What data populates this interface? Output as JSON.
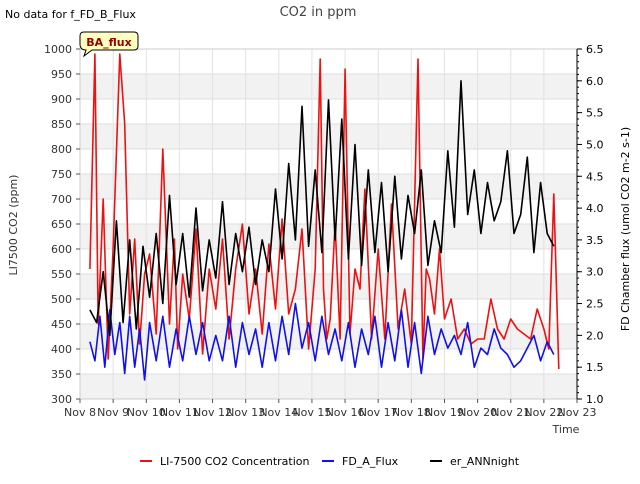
{
  "header": {
    "title": "CO2 in ppm",
    "nodata": "No data for f_FD_B_Flux",
    "badge": "BA_flux"
  },
  "chart_data": {
    "type": "line",
    "title": "CO2 in ppm",
    "xlabel": "Time",
    "ylabel": "LI7500 CO2 (ppm)",
    "y2label": "FD Chamber flux (umol CO2 m-2 s-1)",
    "x_ticks": [
      "Nov 8",
      "Nov 9",
      "Nov 10",
      "Nov 11",
      "Nov 12",
      "Nov 13",
      "Nov 14",
      "Nov 15",
      "Nov 16",
      "Nov 17",
      "Nov 18",
      "Nov 19",
      "Nov 20",
      "Nov 21",
      "Nov 22",
      "Nov 23"
    ],
    "x_range": [
      "Nov 8",
      "Nov 23"
    ],
    "ylim": [
      300,
      1000
    ],
    "y_ticks": [
      300,
      350,
      400,
      450,
      500,
      550,
      600,
      650,
      700,
      750,
      800,
      850,
      900,
      950,
      1000
    ],
    "y2lim": [
      1.0,
      6.5
    ],
    "y2_ticks": [
      1.0,
      1.5,
      2.0,
      2.5,
      3.0,
      3.5,
      4.0,
      4.5,
      5.0,
      5.5,
      6.0,
      6.5
    ],
    "grid": "horizontal alternating bands",
    "legend_position": "bottom",
    "series": [
      {
        "name": "LI-7500 CO2 Concentration",
        "color": "#ee1111",
        "axis": "left",
        "x_day": [
          8.3,
          8.45,
          8.55,
          8.7,
          8.85,
          9.0,
          9.2,
          9.35,
          9.5,
          9.65,
          9.8,
          9.95,
          10.1,
          10.3,
          10.5,
          10.7,
          10.85,
          10.95,
          11.1,
          11.3,
          11.5,
          11.7,
          11.9,
          12.1,
          12.3,
          12.5,
          12.7,
          12.9,
          13.1,
          13.3,
          13.5,
          13.7,
          13.9,
          14.1,
          14.3,
          14.5,
          14.7,
          14.9,
          15.1,
          15.25,
          15.35,
          15.45,
          15.55,
          15.7,
          15.85,
          16.0,
          16.15,
          16.3,
          16.45,
          16.6,
          16.8,
          17.0,
          17.2,
          17.4,
          17.6,
          17.8,
          18.0,
          18.2,
          18.35,
          18.45,
          18.55,
          18.7,
          18.85,
          19.0,
          19.2,
          19.4,
          19.6,
          19.8,
          20.0,
          20.2,
          20.4,
          20.6,
          20.8,
          21.0,
          21.2,
          21.4,
          21.6,
          21.8,
          22.0,
          22.15,
          22.3,
          22.45
        ],
        "values": [
          560,
          990,
          450,
          700,
          380,
          600,
          990,
          850,
          470,
          620,
          410,
          550,
          590,
          430,
          800,
          450,
          620,
          400,
          550,
          460,
          640,
          390,
          560,
          480,
          620,
          420,
          560,
          650,
          470,
          560,
          430,
          610,
          480,
          660,
          470,
          520,
          640,
          400,
          560,
          980,
          520,
          420,
          460,
          650,
          420,
          960,
          430,
          560,
          520,
          720,
          420,
          600,
          420,
          690,
          440,
          520,
          410,
          980,
          380,
          560,
          540,
          470,
          600,
          460,
          500,
          420,
          440,
          410,
          420,
          420,
          500,
          440,
          420,
          460,
          440,
          430,
          420,
          480,
          440,
          400,
          710,
          360
        ]
      },
      {
        "name": "FD_A_Flux",
        "color": "#1111ee",
        "axis": "right",
        "x_day": [
          8.3,
          8.45,
          8.6,
          8.75,
          8.9,
          9.05,
          9.2,
          9.35,
          9.5,
          9.65,
          9.8,
          9.95,
          10.1,
          10.3,
          10.5,
          10.7,
          10.9,
          11.1,
          11.3,
          11.5,
          11.7,
          11.9,
          12.1,
          12.3,
          12.5,
          12.7,
          12.9,
          13.1,
          13.3,
          13.5,
          13.7,
          13.9,
          14.1,
          14.3,
          14.5,
          14.7,
          14.9,
          15.1,
          15.3,
          15.5,
          15.7,
          15.9,
          16.1,
          16.3,
          16.5,
          16.7,
          16.9,
          17.1,
          17.3,
          17.5,
          17.7,
          17.9,
          18.1,
          18.3,
          18.5,
          18.7,
          18.9,
          19.1,
          19.3,
          19.5,
          19.7,
          19.9,
          20.1,
          20.3,
          20.5,
          20.7,
          20.9,
          21.1,
          21.3,
          21.5,
          21.7,
          21.9,
          22.1,
          22.3
        ],
        "values": [
          1.9,
          1.6,
          2.3,
          1.5,
          2.4,
          1.7,
          2.2,
          1.4,
          2.3,
          1.5,
          2.1,
          1.3,
          2.2,
          1.6,
          2.3,
          1.5,
          2.1,
          1.6,
          2.3,
          1.7,
          2.2,
          1.6,
          2.0,
          1.6,
          2.3,
          1.5,
          2.2,
          1.7,
          2.1,
          1.5,
          2.2,
          1.6,
          2.3,
          1.7,
          2.5,
          1.8,
          2.2,
          1.6,
          2.3,
          1.7,
          2.1,
          1.6,
          2.2,
          1.5,
          2.1,
          1.7,
          2.3,
          1.5,
          2.2,
          1.6,
          2.4,
          1.5,
          2.2,
          1.4,
          2.3,
          1.7,
          2.1,
          1.8,
          2.0,
          1.7,
          2.2,
          1.5,
          1.8,
          1.7,
          2.1,
          1.8,
          1.7,
          1.5,
          1.6,
          1.8,
          2.0,
          1.6,
          1.9,
          1.7
        ]
      },
      {
        "name": "er_ANNnight",
        "color": "#000000",
        "axis": "right",
        "x_day": [
          8.3,
          8.5,
          8.7,
          8.9,
          9.1,
          9.3,
          9.5,
          9.7,
          9.9,
          10.1,
          10.3,
          10.5,
          10.7,
          10.9,
          11.1,
          11.3,
          11.5,
          11.7,
          11.9,
          12.1,
          12.3,
          12.5,
          12.7,
          12.9,
          13.1,
          13.3,
          13.5,
          13.7,
          13.9,
          14.1,
          14.3,
          14.5,
          14.7,
          14.9,
          15.1,
          15.3,
          15.5,
          15.7,
          15.9,
          16.1,
          16.3,
          16.5,
          16.7,
          16.9,
          17.1,
          17.3,
          17.5,
          17.7,
          17.9,
          18.1,
          18.3,
          18.5,
          18.7,
          18.9,
          19.1,
          19.3,
          19.5,
          19.7,
          19.9,
          20.1,
          20.3,
          20.5,
          20.7,
          20.9,
          21.1,
          21.3,
          21.5,
          21.7,
          21.9,
          22.1,
          22.3
        ],
        "values": [
          2.4,
          2.2,
          3.0,
          2.0,
          3.8,
          2.2,
          3.5,
          2.1,
          3.4,
          2.6,
          3.6,
          2.5,
          4.2,
          2.8,
          3.6,
          2.6,
          4.0,
          2.7,
          3.5,
          2.9,
          4.1,
          2.8,
          3.6,
          3.0,
          3.7,
          2.8,
          3.5,
          3.0,
          4.3,
          3.2,
          4.7,
          3.5,
          5.6,
          3.4,
          4.6,
          3.3,
          5.7,
          3.5,
          5.4,
          3.2,
          5.0,
          3.1,
          4.6,
          3.3,
          4.4,
          3.0,
          4.5,
          3.2,
          4.2,
          3.6,
          4.6,
          3.1,
          3.8,
          3.3,
          4.9,
          3.7,
          6.0,
          3.9,
          4.6,
          3.6,
          4.4,
          3.8,
          4.1,
          4.9,
          3.6,
          3.9,
          4.8,
          3.3,
          4.4,
          3.6,
          3.4
        ]
      }
    ]
  }
}
